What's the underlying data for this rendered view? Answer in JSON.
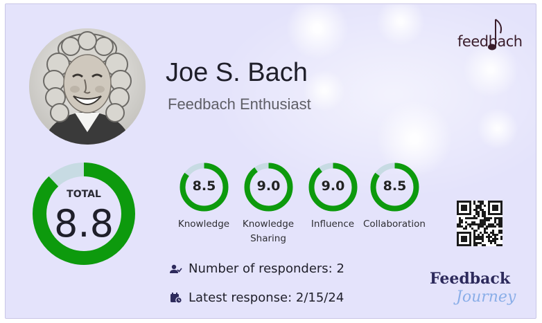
{
  "profile": {
    "name": "Joe S. Bach",
    "title": "Feedbach Enthusiast"
  },
  "brand": {
    "logo_text": "feedbach",
    "journey_line1": "Feedback",
    "journey_line2": "Journey"
  },
  "total": {
    "label": "TOTAL",
    "value": "8.8",
    "fraction": 0.88
  },
  "metrics": [
    {
      "value": "8.5",
      "label": "Knowledge",
      "fraction": 0.85
    },
    {
      "value": "9.0",
      "label": "Knowledge Sharing",
      "fraction": 0.9
    },
    {
      "value": "9.0",
      "label": "Influence",
      "fraction": 0.9
    },
    {
      "value": "8.5",
      "label": "Collaboration",
      "fraction": 0.85
    }
  ],
  "stats": {
    "responders": "Number of responders: 2",
    "latest": "Latest response: 2/15/24"
  },
  "colors": {
    "ring_fill": "#0d9a0d",
    "ring_track": "#c7dbe3",
    "card_bg": "#e4e3fb"
  },
  "icons": {
    "responders": "user-check-icon",
    "latest": "calendar-clock-icon",
    "qr": "qr-code-icon"
  }
}
